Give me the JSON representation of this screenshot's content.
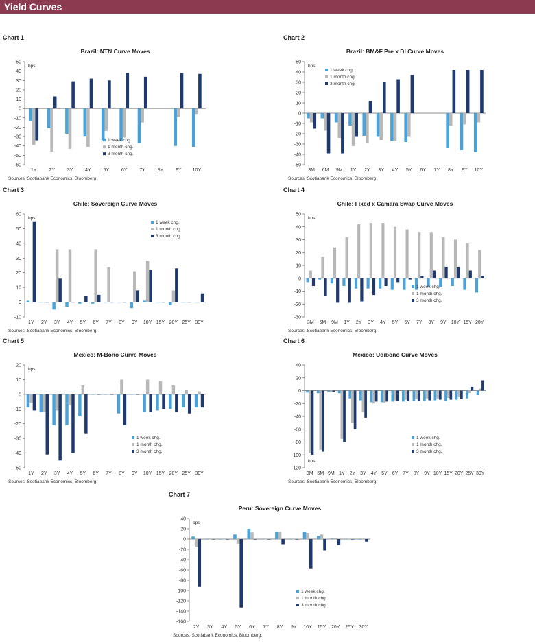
{
  "page": {
    "banner_title": "Yield Curves"
  },
  "colors": {
    "week": "#4aa3d8",
    "month": "#b8b8b8",
    "quarter": "#1e3a6e",
    "banner": "#8b3a50"
  },
  "chart_data": [
    {
      "label": "Chart 1",
      "type": "bar",
      "title": "Brazil: NTN Curve Moves",
      "unit": "bps",
      "categories": [
        "1Y",
        "2Y",
        "3Y",
        "4Y",
        "5Y",
        "6Y",
        "7Y",
        "8Y",
        "9Y",
        "10Y"
      ],
      "ylim": [
        -60,
        50
      ],
      "yticks": [
        50,
        40,
        30,
        20,
        10,
        0,
        -10,
        -20,
        -30,
        -40,
        -50,
        -60
      ],
      "legend": "mid-right",
      "legend_row": 4,
      "series": [
        {
          "name": "1 week chg.",
          "values": [
            -13,
            -21,
            -27,
            -30,
            -34,
            -35,
            -37,
            null,
            -40,
            -41
          ]
        },
        {
          "name": "1 month chg.",
          "values": [
            -39,
            -46,
            -43,
            -41,
            -24,
            -31,
            -15,
            null,
            -9,
            -6
          ]
        },
        {
          "name": "3 month chg.",
          "values": [
            -34,
            13,
            29,
            32,
            30,
            38,
            34,
            null,
            38,
            37
          ]
        }
      ],
      "source": "Sources: Scotiabank Economics, Bloomberg."
    },
    {
      "label": "Chart 2",
      "type": "bar",
      "title": "Brazil: BM&F Pre x DI Curve Moves",
      "unit": "bps",
      "categories": [
        "3M",
        "6M",
        "9M",
        "1Y",
        "2Y",
        "3Y",
        "4Y",
        "5Y",
        "6Y",
        "7Y",
        "8Y",
        "9Y",
        "10Y"
      ],
      "ylim": [
        -50,
        50
      ],
      "yticks": [
        50,
        40,
        30,
        20,
        10,
        0,
        -10,
        -20,
        -30,
        -40,
        -50
      ],
      "legend": "top-left",
      "legend_row": 9,
      "series": [
        {
          "name": "1 week chg.",
          "values": [
            -5,
            -5,
            -9,
            -12,
            -22,
            -23,
            -27,
            -28,
            null,
            null,
            -34,
            -36,
            -38
          ]
        },
        {
          "name": "1 month chg.",
          "values": [
            -9,
            -17,
            -24,
            -32,
            -29,
            -26,
            -27,
            -23,
            null,
            null,
            -12,
            -11,
            -9
          ]
        },
        {
          "name": "3 month chg.",
          "values": [
            -15,
            -39,
            -39,
            -23,
            12,
            30,
            33,
            37,
            null,
            null,
            42,
            42,
            42
          ]
        }
      ],
      "source": "Sources: Scotiabank Economics, Bloomberg."
    },
    {
      "label": "Chart 3",
      "type": "bar",
      "title": "Chile: Sovereign Curve Moves",
      "unit": "bps",
      "categories": [
        "1Y",
        "2Y",
        "3Y",
        "4Y",
        "5Y",
        "6Y",
        "7Y",
        "8Y",
        "9Y",
        "10Y",
        "15Y",
        "20Y",
        "25Y",
        "30Y"
      ],
      "ylim": [
        -10,
        60
      ],
      "yticks": [
        60,
        50,
        40,
        30,
        20,
        10,
        0,
        -10
      ],
      "legend": "top-right",
      "legend_row": 8,
      "series": [
        {
          "name": "1 week chg.",
          "values": [
            1,
            0,
            -5,
            -3,
            -1,
            -1,
            0,
            0,
            -4,
            1,
            0,
            -2,
            0,
            0
          ]
        },
        {
          "name": "1 month chg.",
          "values": [
            0,
            0,
            36,
            36,
            0,
            36,
            24,
            0,
            21,
            28,
            0,
            8,
            0,
            0
          ]
        },
        {
          "name": "3 month chg.",
          "values": [
            55,
            0,
            16,
            0,
            4,
            5,
            0,
            0,
            8,
            22,
            0,
            23,
            0,
            6
          ]
        }
      ],
      "source": "Sources: Scotiabank Economics, Bloomberg."
    },
    {
      "label": "Chart 4",
      "type": "bar",
      "title": "Chile: Fixed x Camara Swap Curve Moves",
      "unit": "bps",
      "categories": [
        "3M",
        "6M",
        "9M",
        "1Y",
        "2Y",
        "3Y",
        "4Y",
        "5Y",
        "6Y",
        "7Y",
        "8Y",
        "9Y",
        "10Y",
        "15Y",
        "20Y"
      ],
      "ylim": [
        -30,
        50
      ],
      "yticks": [
        50,
        40,
        30,
        20,
        10,
        0,
        -10,
        -20,
        -30
      ],
      "legend": "bottom-right",
      "legend_row": 8,
      "series": [
        {
          "name": "1 week chg.",
          "values": [
            -3,
            -1,
            -4,
            -6,
            -8,
            -8,
            -8,
            -9,
            -9,
            -9,
            -7,
            -7,
            -6,
            -9,
            -11
          ]
        },
        {
          "name": "1 month chg.",
          "values": [
            6,
            17,
            24,
            32,
            42,
            43,
            43,
            40,
            38,
            36,
            36,
            32,
            30,
            27,
            22
          ]
        },
        {
          "name": "3 month chg.",
          "values": [
            -6,
            -14,
            -19,
            -19,
            -18,
            -13,
            -6,
            -3,
            -1,
            2,
            6,
            9,
            9,
            6,
            2
          ]
        }
      ],
      "source": "Sources: Scotiabank Economics, Bloomberg."
    },
    {
      "label": "Chart 5",
      "type": "bar",
      "title": "Mexico: M-Bono Curve Moves",
      "unit": "bps",
      "categories": [
        "1Y",
        "2Y",
        "3Y",
        "4Y",
        "5Y",
        "6Y",
        "7Y",
        "8Y",
        "9Y",
        "10Y",
        "15Y",
        "20Y",
        "25Y",
        "30Y"
      ],
      "ylim": [
        -50,
        20
      ],
      "yticks": [
        20,
        10,
        0,
        -10,
        -20,
        -30,
        -40,
        -50
      ],
      "legend": "bottom-right",
      "legend_row": 4,
      "series": [
        {
          "name": "1 week chg.",
          "values": [
            -9,
            -12,
            -21,
            -21,
            -15,
            0,
            0,
            -13,
            0,
            -12,
            -11,
            -10,
            -9,
            -9
          ]
        },
        {
          "name": "1 month chg.",
          "values": [
            -6,
            -12,
            -11,
            -7,
            6,
            0,
            0,
            10,
            0,
            10,
            9,
            6,
            3,
            2
          ]
        },
        {
          "name": "3 month chg.",
          "values": [
            -11,
            -41,
            -45,
            -40,
            -27,
            0,
            0,
            -21,
            0,
            -12,
            -10,
            -12,
            -13,
            -9
          ]
        }
      ],
      "source": "Sources: Scotiabank Economics, Bloomberg."
    },
    {
      "label": "Chart 6",
      "type": "bar",
      "title": "Mexico: Udibono Curve Moves",
      "unit": "bps",
      "categories": [
        "3M",
        "6M",
        "9M",
        "1Y",
        "2Y",
        "3Y",
        "4Y",
        "5Y",
        "6Y",
        "7Y",
        "8Y",
        "9Y",
        "10Y",
        "15Y",
        "20Y",
        "25Y",
        "30Y"
      ],
      "ylim": [
        -120,
        40
      ],
      "yticks": [
        40,
        20,
        0,
        -20,
        -40,
        -60,
        -80,
        -100,
        -120
      ],
      "legend": "bottom-right",
      "legend_row": 4,
      "unit_position": "bottom",
      "series": [
        {
          "name": "1 week chg.",
          "values": [
            -3,
            -4,
            -2,
            -4,
            -12,
            -15,
            -18,
            -18,
            -17,
            -17,
            -16,
            -16,
            -15,
            -16,
            -14,
            -12,
            -7
          ]
        },
        {
          "name": "1 month chg.",
          "values": [
            -97,
            -92,
            -2,
            -75,
            -50,
            -33,
            -20,
            -19,
            -15,
            -14,
            -13,
            -12,
            -12,
            -11,
            -10,
            -4,
            3
          ]
        },
        {
          "name": "3 month chg.",
          "values": [
            -100,
            -95,
            -2,
            -80,
            -60,
            -42,
            -17,
            -17,
            -16,
            -16,
            -16,
            -15,
            -14,
            -14,
            -13,
            6,
            16
          ]
        }
      ],
      "source": "Sources: Scotiabank Economics, Bloomberg."
    },
    {
      "label": "Chart 7",
      "type": "bar",
      "title": "Peru: Sovereign Curve Moves",
      "unit": "bps",
      "categories": [
        "2Y",
        "3Y",
        "4Y",
        "5Y",
        "6Y",
        "7Y",
        "8Y",
        "9Y",
        "10Y",
        "15Y",
        "20Y",
        "25Y",
        "30Y"
      ],
      "ylim": [
        -160,
        40
      ],
      "yticks": [
        40,
        20,
        0,
        -20,
        -40,
        -60,
        -80,
        -100,
        -120,
        -140,
        -160
      ],
      "legend": "bottom-right",
      "legend_row": 4,
      "series": [
        {
          "name": "1 week chg.",
          "values": [
            5,
            0,
            0,
            9,
            20,
            0,
            14,
            0,
            14,
            6,
            1,
            0,
            -1
          ]
        },
        {
          "name": "1 month chg.",
          "values": [
            -16,
            0,
            0,
            -9,
            13,
            0,
            14,
            0,
            12,
            9,
            2,
            0,
            -1
          ]
        },
        {
          "name": "3 month chg.",
          "values": [
            -93,
            0,
            0,
            -133,
            0,
            0,
            -10,
            0,
            -57,
            -22,
            -12,
            0,
            -5
          ]
        }
      ],
      "source": "Sources: Scotiabank Economics, Bloomberg."
    }
  ]
}
